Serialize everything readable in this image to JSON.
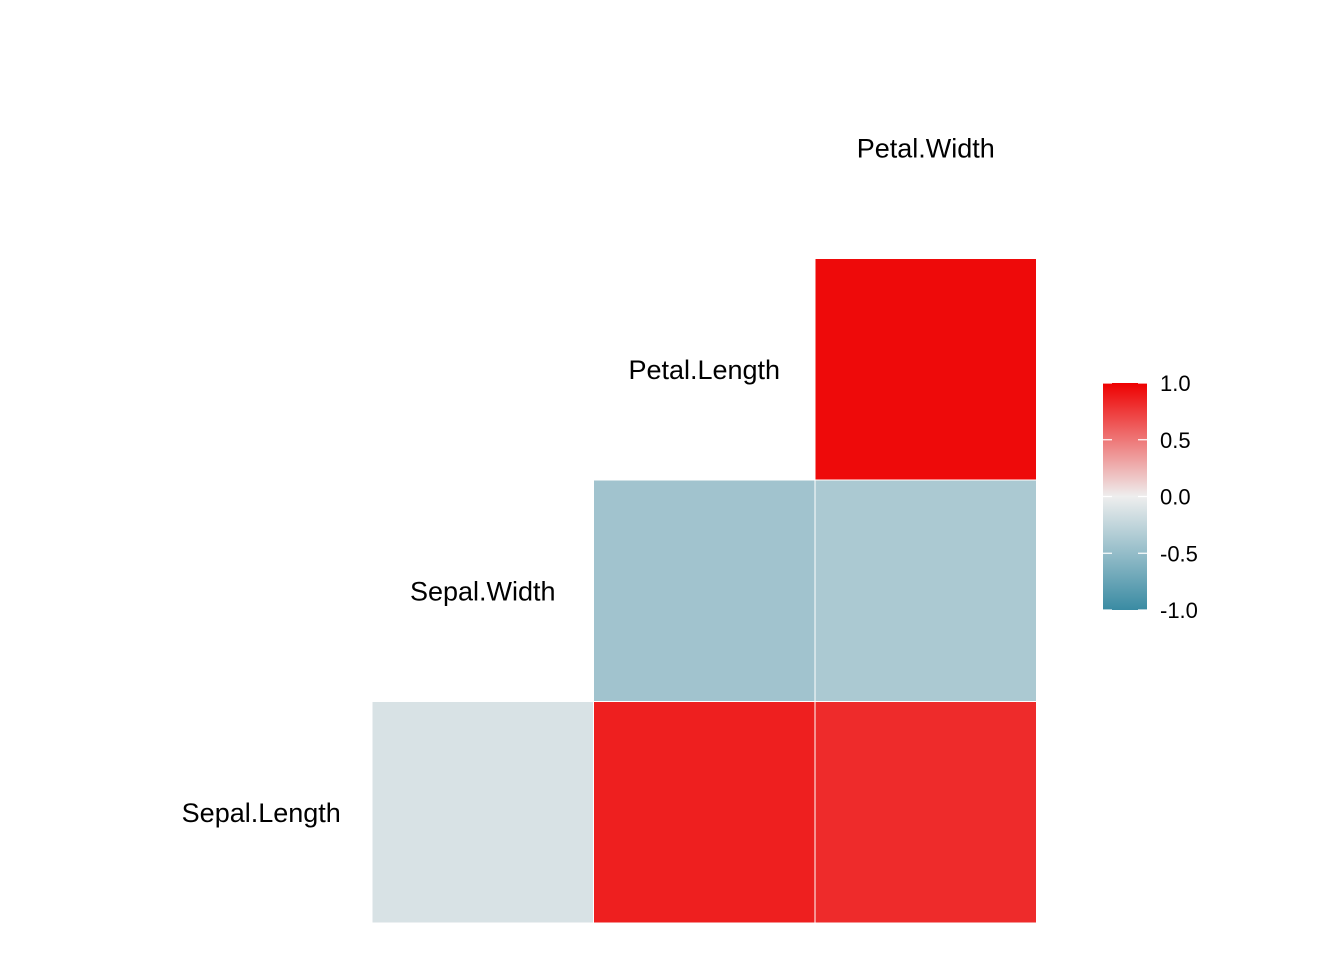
{
  "chart_data": {
    "type": "heatmap",
    "title": "",
    "variables": [
      "Sepal.Length",
      "Sepal.Width",
      "Petal.Length",
      "Petal.Width"
    ],
    "cells": [
      {
        "row": "Sepal.Length",
        "col": "Sepal.Width",
        "value": -0.12
      },
      {
        "row": "Sepal.Length",
        "col": "Petal.Length",
        "value": 0.87
      },
      {
        "row": "Sepal.Length",
        "col": "Petal.Width",
        "value": 0.82
      },
      {
        "row": "Sepal.Width",
        "col": "Petal.Length",
        "value": -0.43
      },
      {
        "row": "Sepal.Width",
        "col": "Petal.Width",
        "value": -0.37
      },
      {
        "row": "Petal.Length",
        "col": "Petal.Width",
        "value": 0.96
      }
    ],
    "legend": {
      "position": "right",
      "range": [
        -1.0,
        1.0
      ],
      "ticks": [
        "1.0",
        "0.5",
        "0.0",
        "-0.5",
        "-1.0"
      ],
      "colors": {
        "low": "#3A8BA3",
        "mid": "#EEEEEE",
        "high": "#EE0000"
      }
    },
    "grid": false
  }
}
